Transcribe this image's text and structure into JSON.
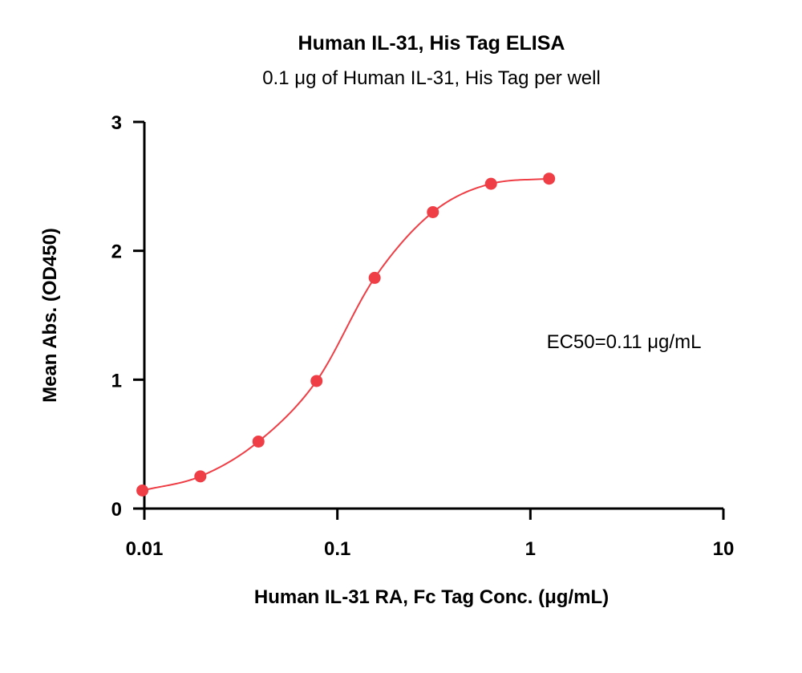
{
  "chart_data": {
    "type": "scatter",
    "title": "Human IL-31, His Tag ELISA",
    "subtitle": "0.1 μg of Human IL-31, His Tag per well",
    "xlabel": "Human IL-31 RA, Fc Tag Conc. (μg/mL)",
    "ylabel": "Mean Abs. (OD450)",
    "x_scale": "log",
    "xlim": [
      0.01,
      10
    ],
    "ylim": [
      0,
      3
    ],
    "x_ticks": [
      0.01,
      0.1,
      1,
      10
    ],
    "x_tick_labels": [
      "0.01",
      "0.1",
      "1",
      "10"
    ],
    "y_ticks": [
      0,
      1,
      2,
      3
    ],
    "y_tick_labels": [
      "0",
      "1",
      "2",
      "3"
    ],
    "grid": false,
    "series": [
      {
        "x": [
          0.00977,
          0.0195,
          0.039,
          0.078,
          0.156,
          0.3125,
          0.625,
          1.25
        ],
        "y": [
          0.14,
          0.25,
          0.52,
          0.99,
          1.79,
          2.3,
          2.52,
          2.56
        ],
        "color": "#ef3e45",
        "fit": "4PL"
      }
    ],
    "annotations": [
      {
        "text": "EC50=0.11 μg/mL"
      }
    ]
  }
}
